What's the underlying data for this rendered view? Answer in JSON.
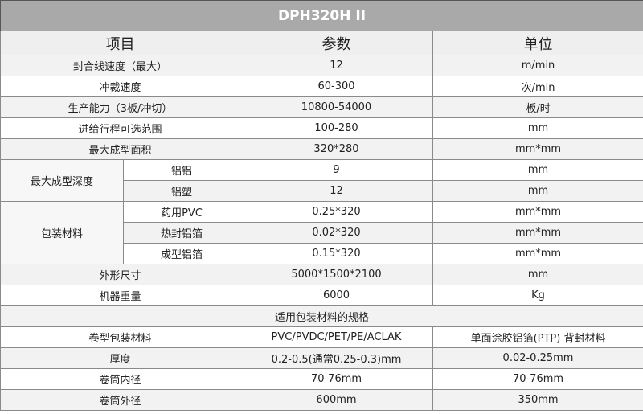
{
  "title": "DPH320H II",
  "headers": [
    "项目",
    "参数",
    "单位"
  ],
  "rows": [
    {
      "item": "封合线速度（最大）",
      "value": "12",
      "unit": "m/min"
    },
    {
      "item": "冲裁速度",
      "value": "60-300",
      "unit": "次/min"
    },
    {
      "item": "生产能力（3板/冲切）",
      "value": "10800-54000",
      "unit": "板/时"
    },
    {
      "item": "进给行程可选范围",
      "value": "100-280",
      "unit": "mm"
    },
    {
      "item": "最大成型面积",
      "value": "320*280",
      "unit": "mm*mm"
    }
  ],
  "depth": {
    "label": "最大成型深度",
    "subs": [
      {
        "item": "铝铝",
        "value": "9",
        "unit": "mm"
      },
      {
        "item": "铝塑",
        "value": "12",
        "unit": "mm"
      }
    ]
  },
  "packaging": {
    "label": "包装材料",
    "subs": [
      {
        "item": "药用PVC",
        "value": "0.25*320",
        "unit": "mm*mm"
      },
      {
        "item": "热封铝箔",
        "value": "0.02*320",
        "unit": "mm*mm"
      },
      {
        "item": "成型铝箔",
        "value": "0.15*320",
        "unit": "mm*mm"
      }
    ]
  },
  "rows2": [
    {
      "item": "外形尺寸",
      "value": "5000*1500*2100",
      "unit": "mm"
    },
    {
      "item": "机器重量",
      "value": "6000",
      "unit": "Kg"
    }
  ],
  "spec_section": "适用包装材料的规格",
  "spec_rows": [
    {
      "item": "卷型包装材料",
      "a": "PVC/PVDC/PET/PE/ACLAK",
      "b": "单面涂胶铝箔(PTP) 背封材料"
    },
    {
      "item": "厚度",
      "a": "0.2-0.5(通常0.25-0.3)mm",
      "b": "0.02-0.25mm"
    },
    {
      "item": "卷筒内径",
      "a": "70-76mm",
      "b": "70-76mm"
    },
    {
      "item": "卷筒外径",
      "a": "600mm",
      "b": "350mm"
    }
  ]
}
